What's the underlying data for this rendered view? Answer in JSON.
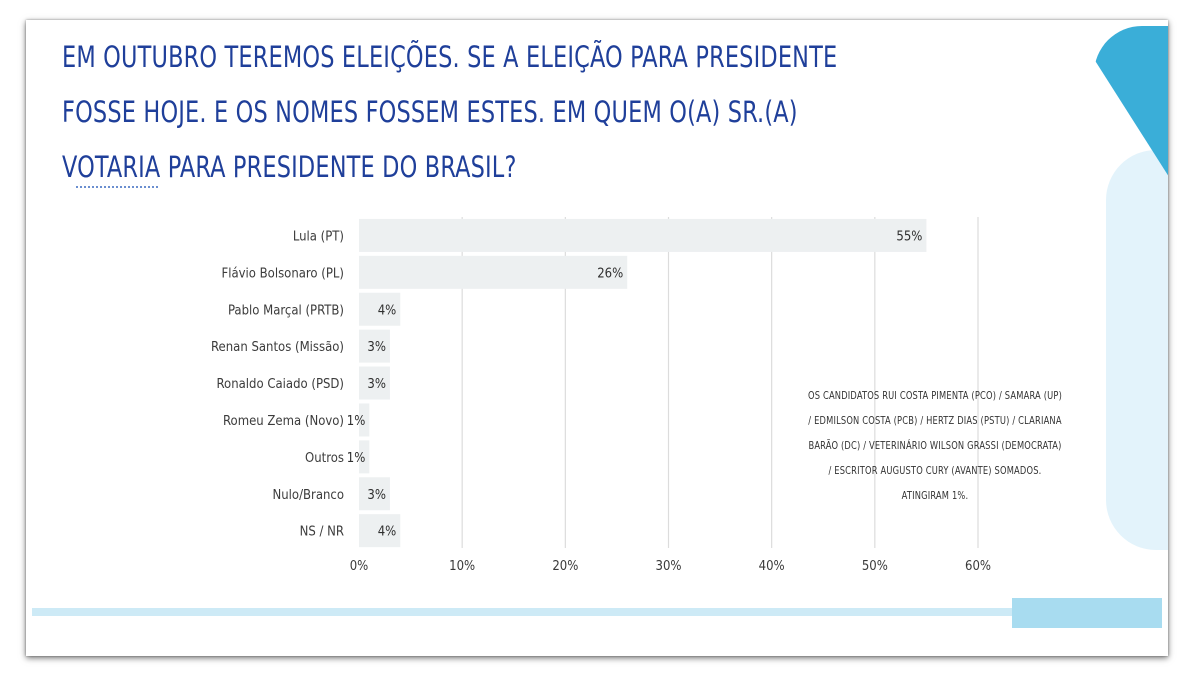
{
  "title": "EM OUTUBRO TEREMOS ELEIÇÕES. SE A ELEIÇÃO PARA PRESIDENTE FOSSE HOJE. E OS NOMES FOSSEM ESTES. EM QUEM O(A) SR.(A) VOTARIA PARA PRESIDENTE DO BRASIL?",
  "note": "OS CANDIDATOS RUI COSTA PIMENTA (PCO) / SAMARA (UP) / EDMILSON COSTA (PCB) / HERTZ DIAS (PSTU) / CLARIANA BARÃO (DC) / VETERINÁRIO WILSON GRASSI (DEMOCRATA) / ESCRITOR AUGUSTO CURY (AVANTE) SOMADOS. ATINGIRAM 1%.",
  "colors": {
    "title": "#1f3f9a",
    "bar": "#edf0f1",
    "accent_top": "#3aaed8",
    "accent_light": "#e3f3fb"
  },
  "chart_data": {
    "type": "bar",
    "orientation": "horizontal",
    "categories": [
      "Lula (PT)",
      "Flávio Bolsonaro (PL)",
      "Pablo Marçal (PRTB)",
      "Renan Santos (Missão)",
      "Ronaldo Caiado (PSD)",
      "Romeu Zema (Novo)",
      "Outros",
      "Nulo/Branco",
      "NS / NR"
    ],
    "values": [
      55,
      26,
      4,
      3,
      3,
      1,
      1,
      3,
      4
    ],
    "value_labels": [
      "55%",
      "26%",
      "4%",
      "3%",
      "3%",
      "1%",
      "1%",
      "3%",
      "4%"
    ],
    "xlim": [
      0,
      60
    ],
    "xticks": [
      0,
      10,
      20,
      30,
      40,
      50,
      60
    ],
    "xtick_labels": [
      "0%",
      "10%",
      "20%",
      "30%",
      "40%",
      "50%",
      "60%"
    ],
    "grid": true
  }
}
